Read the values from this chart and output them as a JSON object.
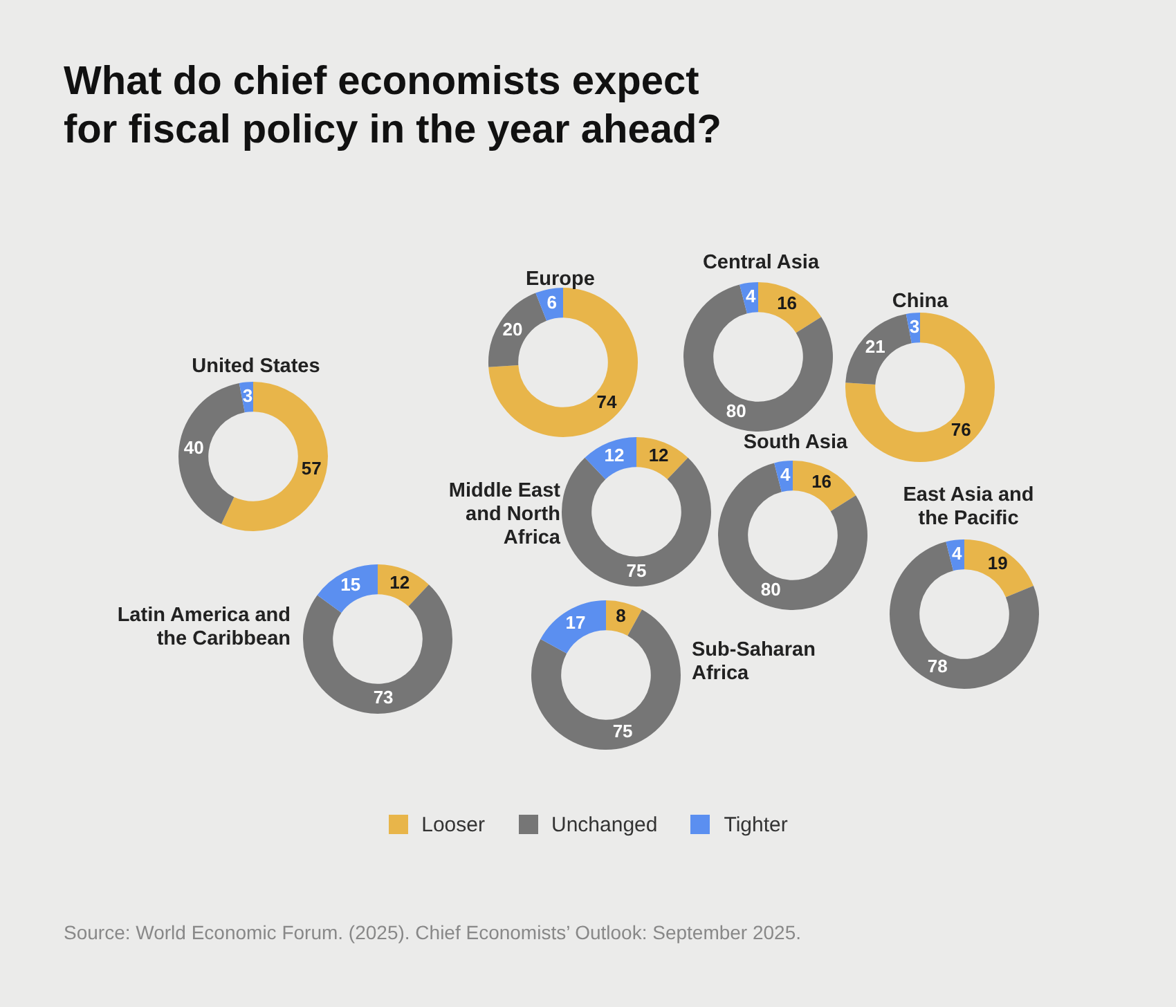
{
  "chart_data": [
    {
      "type": "other",
      "title": "What do chief economists expect for fiscal policy in the year ahead?",
      "annotations": [
        "Source: World Economic Forum. (2025). Chief Economists’ Outlook: September 2025."
      ]
    },
    {
      "type": "donut",
      "title": "United States",
      "values": [
        57,
        40,
        3
      ],
      "colors": [
        "#e8b54a",
        "#767676",
        "#5b8ff0"
      ],
      "data_labels": true
    },
    {
      "type": "donut",
      "title": "Europe",
      "values": [
        74,
        20,
        6
      ],
      "colors": [
        "#e8b54a",
        "#767676",
        "#5b8ff0"
      ],
      "data_labels": true
    },
    {
      "type": "donut",
      "title": "Central Asia",
      "values": [
        16,
        80,
        4
      ],
      "colors": [
        "#e8b54a",
        "#767676",
        "#5b8ff0"
      ],
      "data_labels": true
    },
    {
      "type": "donut",
      "title": "China",
      "values": [
        76,
        21,
        3
      ],
      "colors": [
        "#e8b54a",
        "#767676",
        "#5b8ff0"
      ],
      "data_labels": true
    },
    {
      "type": "donut",
      "title": "Middle East and North Africa",
      "values": [
        12,
        75,
        12
      ],
      "colors": [
        "#e8b54a",
        "#767676",
        "#5b8ff0"
      ],
      "data_labels": true
    },
    {
      "type": "donut",
      "title": "South Asia",
      "values": [
        16,
        80,
        4
      ],
      "colors": [
        "#e8b54a",
        "#767676",
        "#5b8ff0"
      ],
      "data_labels": true
    },
    {
      "type": "donut",
      "title": "East Asia and the Pacific",
      "values": [
        19,
        78,
        4
      ],
      "colors": [
        "#e8b54a",
        "#767676",
        "#5b8ff0"
      ],
      "data_labels": true
    },
    {
      "type": "donut",
      "title": "Latin America and the Caribbean",
      "values": [
        12,
        73,
        15
      ],
      "colors": [
        "#e8b54a",
        "#767676",
        "#5b8ff0"
      ],
      "data_labels": true
    },
    {
      "type": "donut",
      "title": "Sub-Saharan Africa",
      "categories": [
        "Looser",
        "Unchanged",
        "Tighter"
      ],
      "values": [
        8,
        75,
        17
      ],
      "colors": [
        "#e8b54a",
        "#767676",
        "#5b8ff0"
      ],
      "data_labels": true,
      "legend": "bottom"
    }
  ]
}
